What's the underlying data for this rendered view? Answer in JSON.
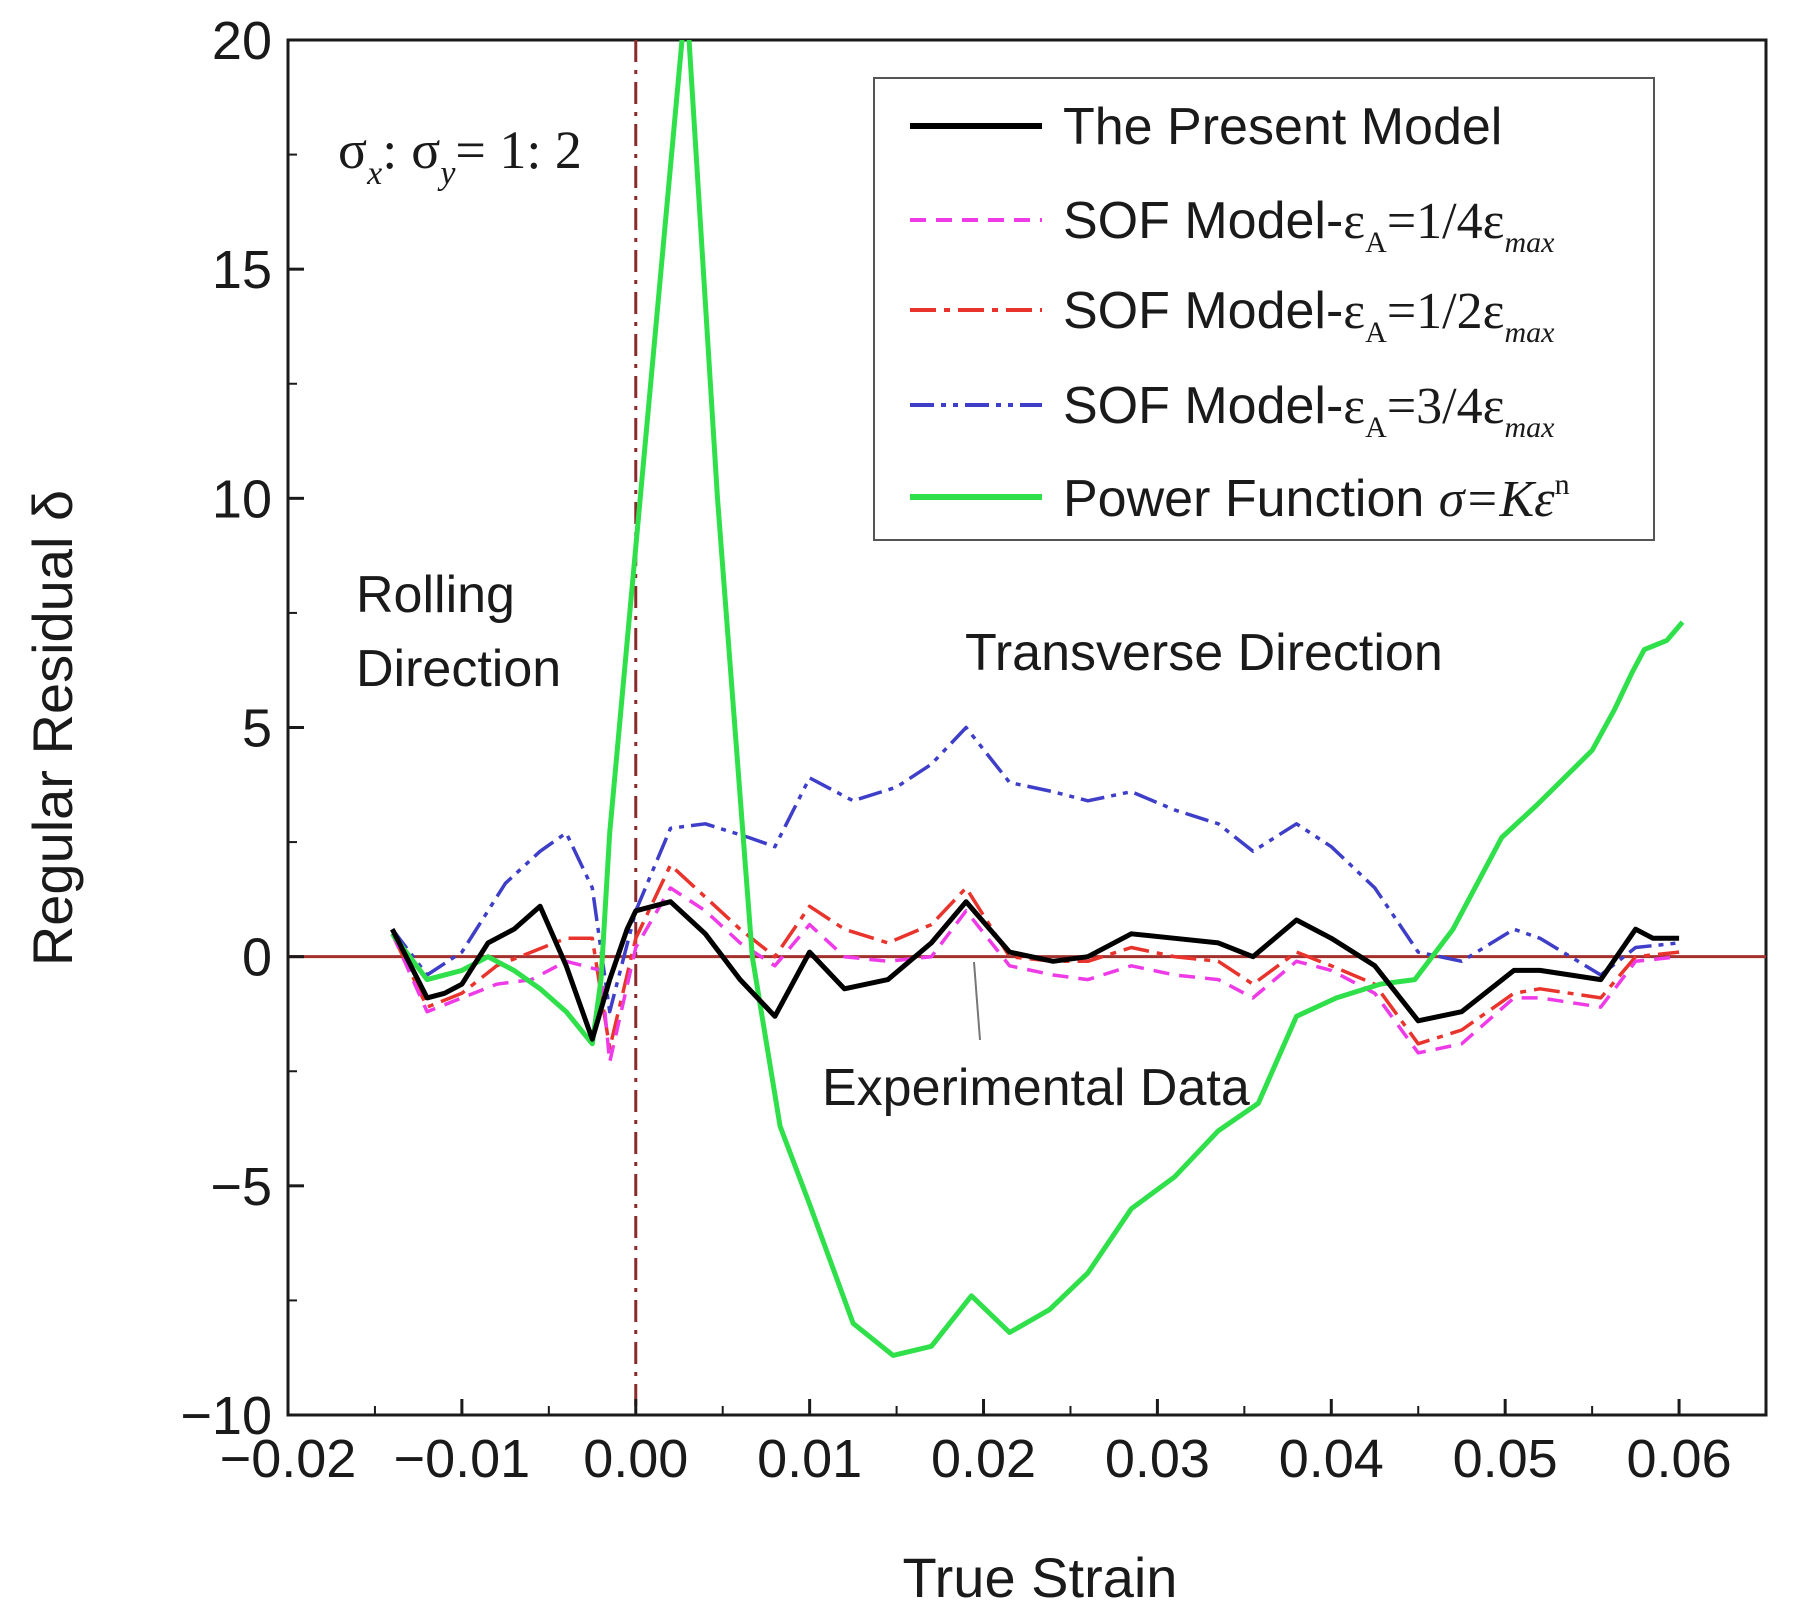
{
  "chart_data": {
    "type": "line",
    "title": "",
    "xlabel": "True Strain",
    "ylabel": "Regular Residual δ",
    "xlim": [
      -0.02,
      0.065
    ],
    "ylim": [
      -10,
      20
    ],
    "grid": false,
    "x_ticks": [
      -0.02,
      -0.01,
      0.0,
      0.01,
      0.02,
      0.03,
      0.04,
      0.05,
      0.06
    ],
    "x_tick_labels": [
      "−0.02",
      "−0.01",
      "0.00",
      "0.01",
      "0.02",
      "0.03",
      "0.04",
      "0.05",
      "0.06"
    ],
    "y_ticks": [
      -10,
      -5,
      0,
      5,
      10,
      15,
      20
    ],
    "y_tick_labels": [
      "−10",
      "−5",
      "0",
      "5",
      "10",
      "15",
      "20"
    ],
    "legend_position": "top-right",
    "stress_ratio_label": {
      "sigma": "σ",
      "sub_x": "x",
      "sub_y": "y",
      "colon": ":",
      "ratio": "= 1: 2"
    },
    "annotations": {
      "rolling_line1": "Rolling",
      "rolling_line2": "Direction",
      "transverse": "Transverse Direction",
      "experimental": "Experimental Data"
    },
    "reference_lines": {
      "zero_line_value": 0,
      "zero_line_color": "#a3302d",
      "direction_divider_x": 0.0,
      "direction_divider_color": "#8b2a2a"
    },
    "series": [
      {
        "name": "The Present Model",
        "color": "#000000",
        "dash": "solid",
        "x": [
          -0.014,
          -0.012,
          -0.011,
          -0.01,
          -0.0085,
          -0.007,
          -0.0055,
          -0.004,
          -0.0025,
          -0.0015,
          -0.0005,
          0.0,
          0.002,
          0.004,
          0.006,
          0.008,
          0.01,
          0.012,
          0.0145,
          0.017,
          0.019,
          0.0215,
          0.024,
          0.026,
          0.0285,
          0.031,
          0.0335,
          0.0355,
          0.038,
          0.04,
          0.0425,
          0.045,
          0.0475,
          0.0505,
          0.052,
          0.0555,
          0.0575,
          0.0585,
          0.059,
          0.06
        ],
        "values": [
          0.6,
          -0.9,
          -0.8,
          -0.6,
          0.3,
          0.6,
          1.1,
          -0.2,
          -1.8,
          -0.5,
          0.6,
          1.0,
          1.2,
          0.5,
          -0.5,
          -1.3,
          0.1,
          -0.7,
          -0.5,
          0.3,
          1.2,
          0.1,
          -0.1,
          0.0,
          0.5,
          0.4,
          0.3,
          0.0,
          0.8,
          0.4,
          -0.2,
          -1.4,
          -1.2,
          -0.3,
          -0.3,
          -0.5,
          0.6,
          0.4,
          0.4,
          0.4
        ]
      },
      {
        "name": "SOF Model-εA=1/4εmax",
        "color": "#ee3ae7",
        "dash": "dashed",
        "x": [
          -0.014,
          -0.012,
          -0.01,
          -0.008,
          -0.006,
          -0.004,
          -0.002,
          -0.0015,
          0.0,
          0.002,
          0.004,
          0.006,
          0.008,
          0.01,
          0.012,
          0.0145,
          0.017,
          0.019,
          0.0215,
          0.024,
          0.026,
          0.0285,
          0.031,
          0.0335,
          0.0355,
          0.038,
          0.04,
          0.0425,
          0.045,
          0.0475,
          0.0505,
          0.052,
          0.0555,
          0.0575,
          0.06
        ],
        "values": [
          0.5,
          -1.2,
          -0.9,
          -0.6,
          -0.5,
          -0.1,
          -0.3,
          -2.3,
          0.2,
          1.5,
          1.0,
          0.3,
          -0.2,
          0.7,
          0.0,
          -0.1,
          0.0,
          1.0,
          -0.2,
          -0.4,
          -0.5,
          -0.2,
          -0.4,
          -0.5,
          -0.9,
          -0.1,
          -0.3,
          -0.8,
          -2.1,
          -1.9,
          -0.9,
          -0.9,
          -1.1,
          -0.1,
          0.0
        ]
      },
      {
        "name": "SOF Model-εA=1/2εmax",
        "color": "#e8342c",
        "dash": "dashdot",
        "x": [
          -0.014,
          -0.012,
          -0.01,
          -0.008,
          -0.006,
          -0.004,
          -0.0025,
          -0.0015,
          0.0,
          0.002,
          0.004,
          0.006,
          0.008,
          0.01,
          0.012,
          0.0145,
          0.017,
          0.019,
          0.0215,
          0.024,
          0.026,
          0.0285,
          0.031,
          0.0335,
          0.0355,
          0.038,
          0.04,
          0.0425,
          0.045,
          0.0475,
          0.0505,
          0.052,
          0.0555,
          0.0575,
          0.06
        ],
        "values": [
          0.5,
          -1.1,
          -0.8,
          -0.2,
          0.1,
          0.4,
          0.4,
          -2.0,
          0.4,
          2.0,
          1.3,
          0.6,
          0.0,
          1.1,
          0.6,
          0.3,
          0.7,
          1.5,
          0.0,
          -0.1,
          -0.1,
          0.2,
          0.0,
          -0.1,
          -0.6,
          0.1,
          -0.2,
          -0.6,
          -1.9,
          -1.6,
          -0.8,
          -0.7,
          -0.9,
          0.0,
          0.1
        ]
      },
      {
        "name": "SOF Model-εA=3/4εmax",
        "color": "#3e3ec8",
        "dash": "dashdotdot",
        "x": [
          -0.014,
          -0.012,
          -0.01,
          -0.0075,
          -0.0055,
          -0.004,
          -0.0025,
          -0.0015,
          0.0,
          0.002,
          0.004,
          0.0065,
          0.008,
          0.01,
          0.0125,
          0.015,
          0.017,
          0.019,
          0.0215,
          0.024,
          0.026,
          0.0285,
          0.031,
          0.0335,
          0.0355,
          0.038,
          0.04,
          0.0425,
          0.045,
          0.0475,
          0.0505,
          0.052,
          0.0555,
          0.0575,
          0.06
        ],
        "values": [
          0.6,
          -0.4,
          0.1,
          1.6,
          2.3,
          2.7,
          1.5,
          -1.2,
          1.0,
          2.8,
          2.9,
          2.6,
          2.4,
          3.9,
          3.4,
          3.7,
          4.2,
          5.0,
          3.8,
          3.6,
          3.4,
          3.6,
          3.2,
          2.9,
          2.3,
          2.9,
          2.4,
          1.5,
          0.1,
          -0.1,
          0.6,
          0.4,
          -0.4,
          0.2,
          0.3
        ]
      },
      {
        "name": "Power Function σ=Kεn",
        "color": "#2fe04a",
        "dash": "solid",
        "x": [
          -0.014,
          -0.012,
          -0.01,
          -0.0085,
          -0.007,
          -0.0055,
          -0.004,
          -0.0025,
          -0.002,
          -0.0015,
          0.0029,
          0.0047,
          0.0067,
          0.0083,
          0.01,
          0.0125,
          0.0148,
          0.017,
          0.0193,
          0.0215,
          0.0238,
          0.026,
          0.0285,
          0.031,
          0.0335,
          0.0358,
          0.038,
          0.0403,
          0.0428,
          0.0448,
          0.047,
          0.0498,
          0.0518,
          0.055,
          0.0563,
          0.0573,
          0.058,
          0.0593,
          0.0602
        ],
        "values": [
          0.5,
          -0.5,
          -0.3,
          0.0,
          -0.3,
          -0.7,
          -1.2,
          -1.9,
          -0.5,
          2.7,
          21.0,
          10.0,
          0.0,
          -3.7,
          -5.4,
          -8.0,
          -8.7,
          -8.5,
          -7.4,
          -8.2,
          -7.7,
          -6.9,
          -5.5,
          -4.8,
          -3.8,
          -3.2,
          -1.3,
          -0.9,
          -0.6,
          -0.5,
          0.6,
          2.6,
          3.3,
          4.5,
          5.4,
          6.2,
          6.7,
          6.9,
          7.3
        ]
      }
    ]
  }
}
